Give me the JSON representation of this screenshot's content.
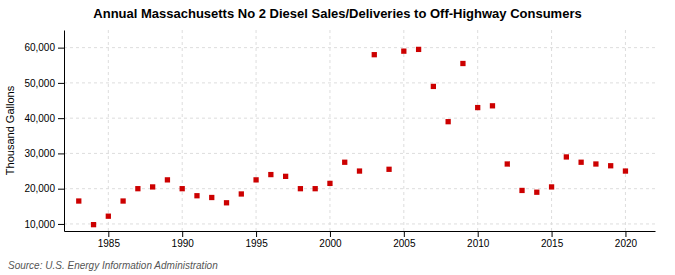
{
  "chart_data": {
    "type": "scatter",
    "title": "Annual Massachusetts No 2 Diesel Sales/Deliveries to Off-Highway Consumers",
    "ylabel": "Thousand Gallons",
    "source": "Source: U.S. Energy Information Administration",
    "x": [
      1983,
      1984,
      1985,
      1986,
      1987,
      1988,
      1989,
      1990,
      1991,
      1992,
      1993,
      1994,
      1995,
      1996,
      1997,
      1998,
      1999,
      2000,
      2001,
      2002,
      2003,
      2004,
      2005,
      2006,
      2007,
      2008,
      2009,
      2010,
      2011,
      2012,
      2013,
      2014,
      2015,
      2016,
      2017,
      2018,
      2019,
      2020
    ],
    "values": [
      16500,
      9800,
      12200,
      16500,
      20000,
      20500,
      22500,
      20000,
      18000,
      17500,
      16000,
      18500,
      22500,
      24000,
      23500,
      20000,
      20000,
      21500,
      27500,
      25000,
      58000,
      25500,
      59000,
      59500,
      49000,
      39000,
      55500,
      43000,
      43500,
      27000,
      19500,
      19000,
      20500,
      29000,
      27500,
      27000,
      26500,
      25000
    ],
    "color": "#cc0000",
    "marker": "square",
    "xlim": [
      1982,
      2022
    ],
    "ylim": [
      8000,
      65000
    ],
    "xticks": [
      1985,
      1990,
      1995,
      2000,
      2005,
      2010,
      2015,
      2020
    ],
    "yticks": [
      {
        "value": 10000,
        "label": "10,000"
      },
      {
        "value": 20000,
        "label": "20,000"
      },
      {
        "value": 30000,
        "label": "30,000"
      },
      {
        "value": 40000,
        "label": "40,000"
      },
      {
        "value": 50000,
        "label": "50,000"
      },
      {
        "value": 60000,
        "label": "60,000"
      }
    ],
    "grid": true
  }
}
